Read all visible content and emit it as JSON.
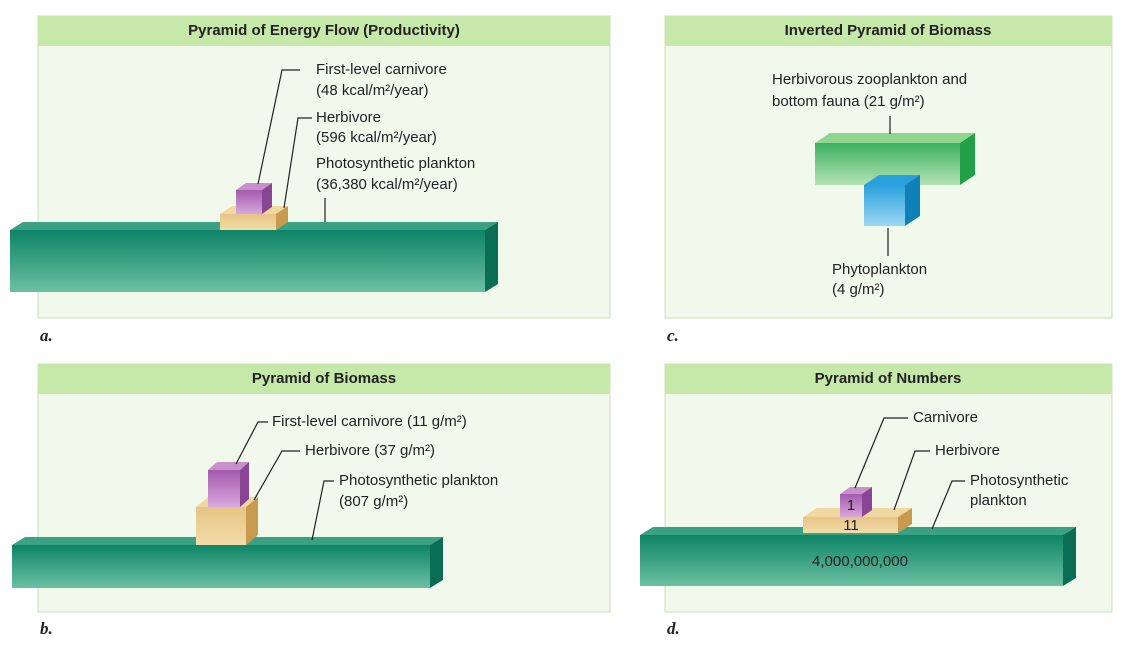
{
  "panels": [
    {
      "title": "Pyramid of Energy Flow (Productivity)",
      "letter": "a.",
      "labels": [
        "First-level carnivore",
        "(48 kcal/m²/year)",
        "Herbivore",
        "(596 kcal/m²/year)",
        "Photosynthetic plankton",
        "(36,380 kcal/m²/year)"
      ]
    },
    {
      "title": "Inverted Pyramid of Biomass",
      "letter": "c.",
      "labels": [
        "Herbivorous zooplankton and",
        "bottom fauna (21 g/m²)",
        "Phytoplankton",
        "(4 g/m²)"
      ]
    },
    {
      "title": "Pyramid of Biomass",
      "letter": "b.",
      "labels": [
        "First-level carnivore (11 g/m²)",
        "Herbivore (37 g/m²)",
        "Photosynthetic plankton",
        "(807 g/m²)"
      ]
    },
    {
      "title": "Pyramid of Numbers",
      "letter": "d.",
      "labels": [
        "Carnivore",
        "Herbivore",
        "Photosynthetic",
        "plankton"
      ],
      "counts": [
        "1",
        "11",
        "4,000,000,000"
      ]
    }
  ]
}
